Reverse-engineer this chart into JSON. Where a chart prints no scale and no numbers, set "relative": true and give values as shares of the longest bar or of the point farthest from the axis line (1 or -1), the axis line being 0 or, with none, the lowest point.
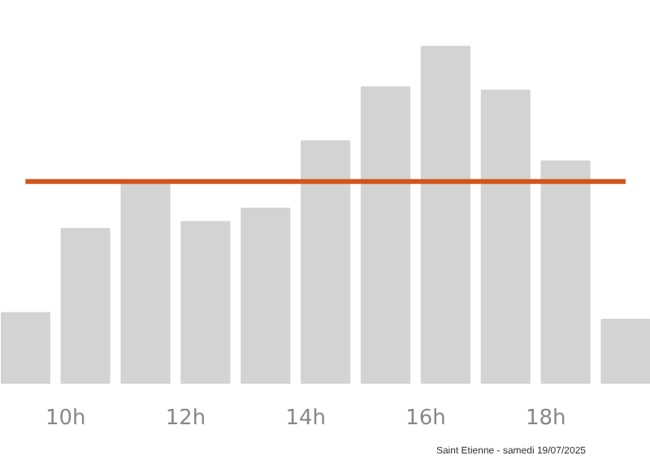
{
  "chart_data": {
    "type": "bar",
    "relative": true,
    "x": [
      9.33,
      10.33,
      11.33,
      12.33,
      13.33,
      14.33,
      15.33,
      16.33,
      17.33,
      18.33,
      19.33
    ],
    "xlim": [
      8.92,
      19.75
    ],
    "xticks": [
      {
        "value": 10,
        "label": "10h"
      },
      {
        "value": 12,
        "label": "12h"
      },
      {
        "value": 14,
        "label": "14h"
      },
      {
        "value": 16,
        "label": "16h"
      },
      {
        "value": 18,
        "label": "18h"
      }
    ],
    "values": [
      0.21,
      0.46,
      0.6,
      0.48,
      0.52,
      0.72,
      0.88,
      1,
      0.87,
      0.66,
      0.19
    ],
    "color": "#d3d3d3",
    "ref_lines": [
      {
        "axis": "y",
        "value": 0.6,
        "color": "#d2541a"
      }
    ],
    "annotations": [
      "Saint Etienne - samedi 19/07/2025"
    ],
    "grid": false
  }
}
